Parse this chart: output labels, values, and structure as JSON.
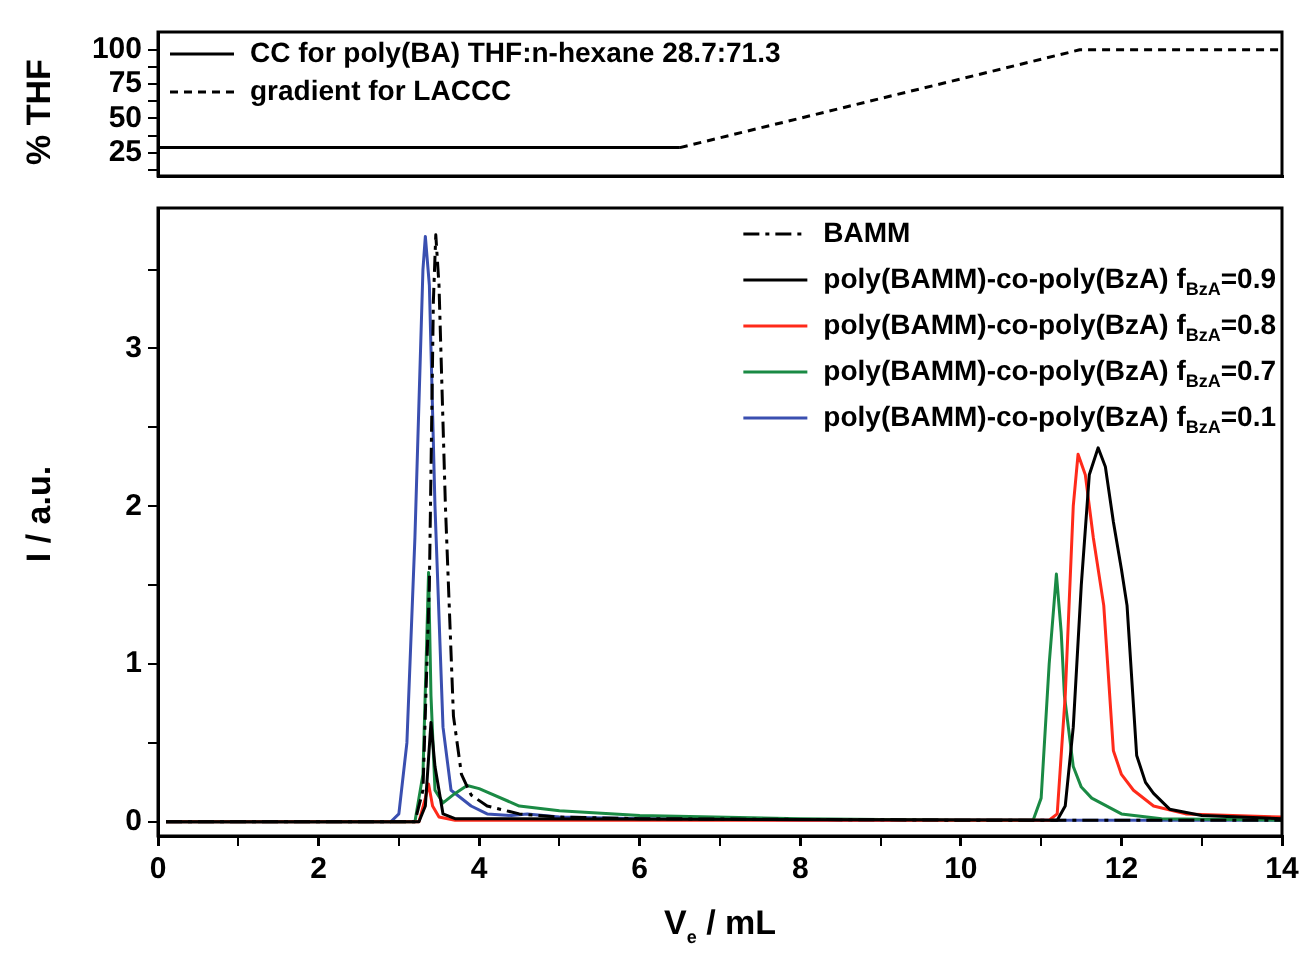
{
  "chart_data": [
    {
      "type": "line",
      "ylabel": "% THF",
      "legend": "top left",
      "tick_labels": "y",
      "xlim": [
        0,
        14
      ],
      "ylim": [
        8,
        113
      ],
      "yticks": [
        {
          "value": 12.5,
          "label": null
        },
        25,
        {
          "value": 37.5,
          "label": null
        },
        50,
        {
          "value": 62.5,
          "label": null
        },
        75,
        {
          "value": 87.5,
          "label": null
        },
        100
      ],
      "series": [
        {
          "name": "CC for poly(BA) THF:n-hexane 28.7:71.3",
          "color": "#000000",
          "line_style": "solid",
          "x": [
            0,
            6.5
          ],
          "values": [
            28.7,
            28.7
          ]
        },
        {
          "name": "gradient for LACCC",
          "color": "#000000",
          "line_style": "dashed",
          "x": [
            6.5,
            11.48,
            14
          ],
          "values": [
            28.7,
            100,
            100
          ]
        }
      ]
    },
    {
      "type": "line",
      "xlabel": "V$_{e}$ / mL",
      "ylabel": "I / a.u.",
      "legend": "top right",
      "xlim": [
        0,
        14
      ],
      "xticks": [
        0,
        {
          "value": 1,
          "label": null
        },
        2,
        {
          "value": 3,
          "label": null
        },
        4,
        {
          "value": 5,
          "label": null
        },
        6,
        {
          "value": 7,
          "label": null
        },
        8,
        {
          "value": 9,
          "label": null
        },
        10,
        {
          "value": 11,
          "label": null
        },
        12,
        {
          "value": 13,
          "label": null
        },
        14
      ],
      "ylim": [
        -0.09,
        3.89
      ],
      "yticks": [
        0,
        {
          "value": 0.5,
          "label": null
        },
        1,
        {
          "value": 1.5,
          "label": null
        },
        2,
        {
          "value": 2.5,
          "label": null
        },
        3,
        {
          "value": 3.5,
          "label": null
        }
      ],
      "series": [
        {
          "name": "BAMM",
          "color": "#000000",
          "line_style": "dashdot",
          "x": [
            0.1,
            3.2,
            3.3,
            3.38,
            3.43,
            3.46,
            3.5,
            3.58,
            3.68,
            3.78,
            3.9,
            4.1,
            4.5,
            5,
            6,
            10,
            14
          ],
          "values": [
            0,
            0,
            0.2,
            1.5,
            3.3,
            3.72,
            3.4,
            2.0,
            0.67,
            0.3,
            0.17,
            0.1,
            0.05,
            0.03,
            0.02,
            0.01,
            0.01
          ]
        },
        {
          "name": "poly(BAMM)-co-poly(BzA) f$_{BzA}$=0.9",
          "color": "#000000",
          "line_style": "solid",
          "x": [
            0.1,
            3.25,
            3.33,
            3.4,
            3.45,
            3.55,
            3.7,
            11.2,
            11.3,
            11.4,
            11.5,
            11.6,
            11.71,
            11.8,
            11.9,
            12.0,
            12.07,
            12.19,
            12.3,
            12.4,
            12.6,
            13,
            14
          ],
          "values": [
            0,
            0,
            0.1,
            0.63,
            0.35,
            0.05,
            0.02,
            0.01,
            0.1,
            0.6,
            1.5,
            2.2,
            2.37,
            2.25,
            1.9,
            1.6,
            1.37,
            0.42,
            0.25,
            0.18,
            0.08,
            0.04,
            0.02
          ]
        },
        {
          "name": "poly(BAMM)-co-poly(BzA) f$_{BzA}$=0.8",
          "color": "#ff2a1a",
          "line_style": "solid",
          "x": [
            0.1,
            3.25,
            3.33,
            3.37,
            3.42,
            3.5,
            3.7,
            11.1,
            11.2,
            11.3,
            11.4,
            11.46,
            11.55,
            11.65,
            11.78,
            11.9,
            12.0,
            12.15,
            12.4,
            12.8,
            14
          ],
          "values": [
            0,
            0,
            0.15,
            0.24,
            0.1,
            0.03,
            0.01,
            0.01,
            0.05,
            0.8,
            2.0,
            2.33,
            2.2,
            1.8,
            1.37,
            0.45,
            0.3,
            0.2,
            0.1,
            0.05,
            0.03
          ]
        },
        {
          "name": "poly(BAMM)-co-poly(BzA) f$_{BzA}$=0.7",
          "color": "#1a8a44",
          "line_style": "solid",
          "x": [
            0.1,
            3.2,
            3.3,
            3.35,
            3.37,
            3.4,
            3.45,
            3.55,
            3.7,
            3.85,
            4.0,
            4.5,
            5,
            6,
            8,
            10,
            10.9,
            11.0,
            11.1,
            11.19,
            11.25,
            11.29,
            11.4,
            11.5,
            11.63,
            12,
            12.5,
            14
          ],
          "values": [
            0,
            0,
            0.3,
            1.2,
            1.58,
            0.8,
            0.2,
            0.12,
            0.18,
            0.23,
            0.21,
            0.1,
            0.07,
            0.04,
            0.02,
            0.01,
            0.01,
            0.15,
            1.0,
            1.57,
            1.2,
            0.8,
            0.35,
            0.22,
            0.15,
            0.05,
            0.02,
            0.01
          ]
        },
        {
          "name": "poly(BAMM)-co-poly(BzA) f$_{BzA}$=0.1",
          "color": "#3a4fb0",
          "line_style": "solid",
          "x": [
            0.1,
            2.9,
            3.0,
            3.1,
            3.2,
            3.3,
            3.33,
            3.38,
            3.45,
            3.55,
            3.65,
            3.75,
            3.9,
            4.1,
            4.4,
            4.6,
            5.0,
            6,
            8,
            10,
            11,
            14
          ],
          "values": [
            0,
            0,
            0.05,
            0.5,
            1.8,
            3.5,
            3.71,
            3.4,
            2.0,
            0.6,
            0.2,
            0.16,
            0.1,
            0.05,
            0.04,
            0.05,
            0.03,
            0.02,
            0.01,
            0.01,
            0.01,
            0.01
          ]
        }
      ]
    }
  ]
}
